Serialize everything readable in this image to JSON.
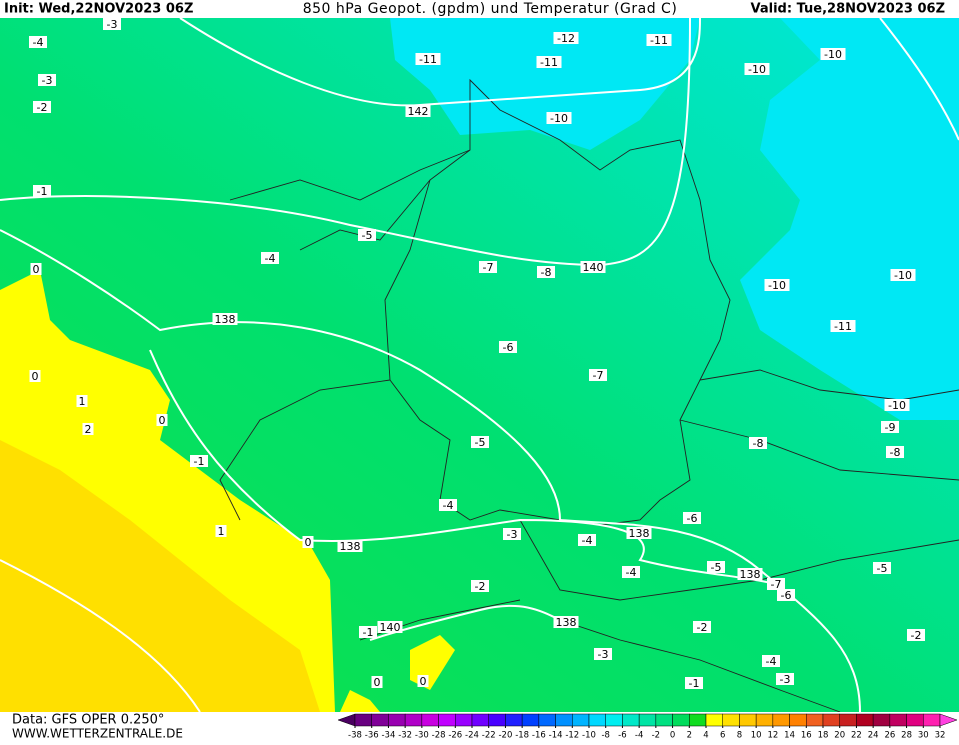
{
  "header": {
    "init": "Init: Wed,22NOV2023 06Z",
    "title": "850 hPa Geopot. (gpdm) und Temperatur (Grad C)",
    "valid": "Valid: Tue,28NOV2023 06Z"
  },
  "footer": {
    "data": "Data: GFS OPER 0.250°",
    "site": "WWW.WETTERZENTRALE.DE"
  },
  "colorbar": {
    "ticks": [
      -38,
      -36,
      -34,
      -32,
      -30,
      -28,
      -26,
      -24,
      -22,
      -20,
      -18,
      -16,
      -14,
      -12,
      -10,
      -8,
      -6,
      -4,
      -2,
      0,
      2,
      4,
      6,
      8,
      10,
      12,
      14,
      16,
      18,
      20,
      22,
      24,
      26,
      28,
      30,
      32
    ],
    "colors": [
      "#4a0060",
      "#680080",
      "#800098",
      "#9800b0",
      "#b000c8",
      "#c800e0",
      "#c000ff",
      "#9800ff",
      "#7000ff",
      "#4800ff",
      "#2020ff",
      "#0040ff",
      "#0068ff",
      "#0090ff",
      "#00b4ff",
      "#00d8ff",
      "#00eef0",
      "#00e8c8",
      "#00e4a4",
      "#00e080",
      "#00dc5c",
      "#10dc20",
      "#ffff00",
      "#ffe000",
      "#ffc800",
      "#ffb000",
      "#ff9800",
      "#ff8000",
      "#f06020",
      "#e04020",
      "#c82020",
      "#b00020",
      "#a00040",
      "#c00060",
      "#e00080",
      "#ff20b0",
      "#ff40e0"
    ]
  },
  "contour_labels": [
    -3,
    -4,
    -3,
    -2,
    -1,
    0,
    0,
    1,
    2,
    0,
    -1,
    1,
    0,
    138,
    -5,
    -4,
    138,
    142,
    -11,
    -12,
    -11,
    -11,
    -10,
    -10,
    -10,
    -10,
    -10,
    -11,
    -10,
    -9,
    -8,
    -8,
    140,
    -7,
    -8,
    -6,
    -7,
    -5,
    -4,
    -3,
    -4,
    138,
    -6,
    -5,
    138,
    -7,
    -6,
    -5,
    -4,
    -2,
    138,
    140,
    -1,
    -2,
    -2,
    -3,
    -4,
    -3,
    -1,
    0,
    0
  ]
}
